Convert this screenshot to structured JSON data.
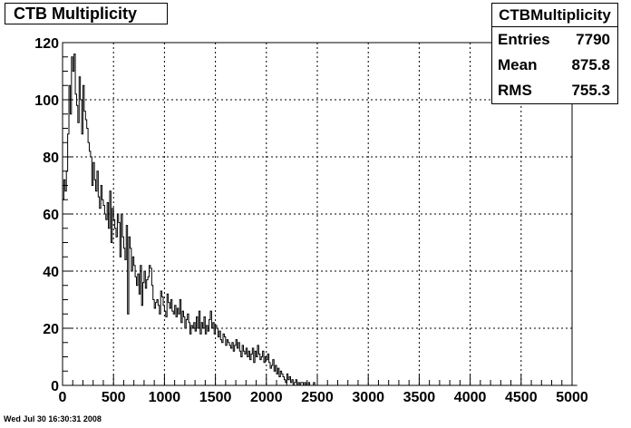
{
  "title": "CTB Multiplicity",
  "stats": {
    "name": "CTBMultiplicity",
    "rows": [
      {
        "label": "Entries",
        "value": "7790"
      },
      {
        "label": "Mean",
        "value": "875.8"
      },
      {
        "label": "RMS",
        "value": "755.3"
      }
    ]
  },
  "datestamp": "Wed Jul 30 16:30:31 2008",
  "chart_data": {
    "type": "histogram",
    "title": "CTB Multiplicity",
    "xlim": [
      0,
      5000
    ],
    "ylim": [
      0,
      120
    ],
    "bin_width": 12.5,
    "grid": true,
    "xticks": [
      0,
      500,
      1000,
      1500,
      2000,
      2500,
      3000,
      3500,
      4000,
      4500,
      5000
    ],
    "yticks": [
      0,
      20,
      40,
      60,
      80,
      100,
      120
    ],
    "series_color": "#000000",
    "values": [
      65,
      72,
      68,
      75,
      88,
      105,
      95,
      115,
      110,
      116,
      102,
      98,
      92,
      108,
      100,
      88,
      105,
      96,
      93,
      90,
      85,
      82,
      80,
      70,
      78,
      72,
      68,
      75,
      66,
      62,
      70,
      65,
      63,
      60,
      58,
      64,
      55,
      68,
      50,
      62,
      58,
      55,
      52,
      60,
      57,
      45,
      60,
      52,
      48,
      44,
      56,
      25,
      52,
      48,
      40,
      45,
      42,
      38,
      35,
      39,
      32,
      42,
      28,
      36,
      40,
      34,
      37,
      38,
      42,
      41,
      35,
      30,
      27,
      29,
      30,
      28,
      25,
      33,
      31,
      28,
      26,
      24,
      32,
      29,
      27,
      30,
      26,
      25,
      28,
      24,
      27,
      25,
      30,
      22,
      26,
      24,
      20,
      23,
      25,
      22,
      18,
      21,
      20,
      22,
      19,
      24,
      20,
      26,
      18,
      22,
      20,
      24,
      18,
      21,
      19,
      23,
      26,
      20,
      22,
      18,
      21,
      20,
      17,
      19,
      16,
      15,
      18,
      17,
      14,
      16,
      15,
      14,
      13,
      15,
      12,
      14,
      16,
      13,
      15,
      12,
      10,
      14,
      12,
      11,
      13,
      10,
      12,
      9,
      11,
      13,
      8,
      12,
      10,
      14,
      11,
      9,
      10,
      12,
      8,
      10,
      9,
      11,
      8,
      6,
      7,
      9,
      5,
      7,
      4,
      6,
      3,
      5,
      4,
      3,
      2,
      1,
      4,
      2,
      3,
      1,
      2,
      0,
      1,
      2,
      0,
      1,
      0,
      1,
      1,
      0,
      1,
      0,
      0,
      1,
      0,
      0,
      0,
      1,
      0,
      0,
      0,
      0,
      0,
      0,
      0,
      0,
      0,
      0,
      0,
      0,
      0,
      0,
      0,
      0,
      0,
      0,
      0,
      0,
      0,
      0,
      0,
      0,
      0,
      0,
      0,
      0,
      0,
      0,
      0,
      0,
      0,
      0,
      0,
      0,
      0,
      0,
      0,
      0,
      0,
      0,
      0,
      0,
      0,
      0,
      0,
      0,
      0,
      0,
      0,
      0,
      0,
      0,
      0,
      0,
      0,
      0,
      0,
      0,
      0,
      0,
      0,
      0,
      0,
      0,
      0,
      0,
      0,
      0,
      0,
      0,
      0,
      0,
      0,
      0,
      0,
      0,
      0,
      0,
      0,
      0,
      0,
      0,
      0,
      0,
      0,
      0,
      0,
      0,
      0,
      0,
      0,
      0,
      0,
      0,
      0,
      0,
      0,
      0,
      0,
      0,
      0,
      0,
      0,
      0,
      0,
      0,
      0,
      0,
      0,
      0,
      0,
      0,
      0,
      0,
      0,
      0,
      0,
      0,
      0,
      0,
      0,
      0,
      0,
      0,
      0,
      0,
      0,
      0,
      0,
      0,
      0,
      0,
      0,
      0,
      0,
      0,
      0,
      0,
      0,
      0,
      0,
      0,
      0,
      0,
      0,
      0,
      0,
      0,
      0,
      0,
      0,
      0,
      0,
      0,
      0,
      0,
      0,
      0,
      0,
      0,
      0,
      0,
      0,
      0,
      0,
      0,
      0,
      0,
      0,
      0,
      0,
      0,
      0,
      0,
      0,
      0,
      0,
      0,
      0,
      0,
      0,
      0,
      0,
      0,
      0,
      0,
      0,
      0,
      0,
      0,
      0,
      0,
      0,
      0,
      0,
      0,
      0,
      0,
      0,
      0,
      0,
      0,
      0,
      0
    ]
  }
}
